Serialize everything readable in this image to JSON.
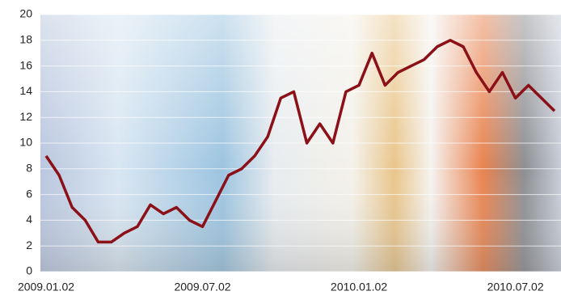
{
  "chart_data": {
    "type": "line",
    "categories": [
      "2009.01.02",
      null,
      null,
      null,
      null,
      null,
      null,
      null,
      null,
      null,
      null,
      null,
      "2009.07.02",
      null,
      null,
      null,
      null,
      null,
      null,
      null,
      null,
      null,
      null,
      null,
      "2010.01.02",
      null,
      null,
      null,
      null,
      null,
      null,
      null,
      null,
      null,
      null,
      null,
      "2010.07.02",
      null,
      null,
      null
    ],
    "series": [
      {
        "color": "#8b1018",
        "values": [
          9,
          7.5,
          5,
          4,
          2.3,
          2.3,
          3,
          3.5,
          5.2,
          4.5,
          5,
          4,
          3.5,
          5.5,
          7.5,
          8,
          9,
          10.5,
          13.5,
          14,
          10,
          11.5,
          10,
          14,
          14.5,
          17,
          14.5,
          15.5,
          16,
          16.5,
          17.5,
          18,
          17.5,
          15.5,
          14,
          15.5,
          13.5,
          14.5,
          13.5,
          12.5
        ]
      }
    ],
    "ylim": [
      0,
      20
    ],
    "yticks": [
      0,
      2,
      4,
      6,
      8,
      10,
      12,
      14,
      16,
      18,
      20
    ],
    "grid": true
  }
}
